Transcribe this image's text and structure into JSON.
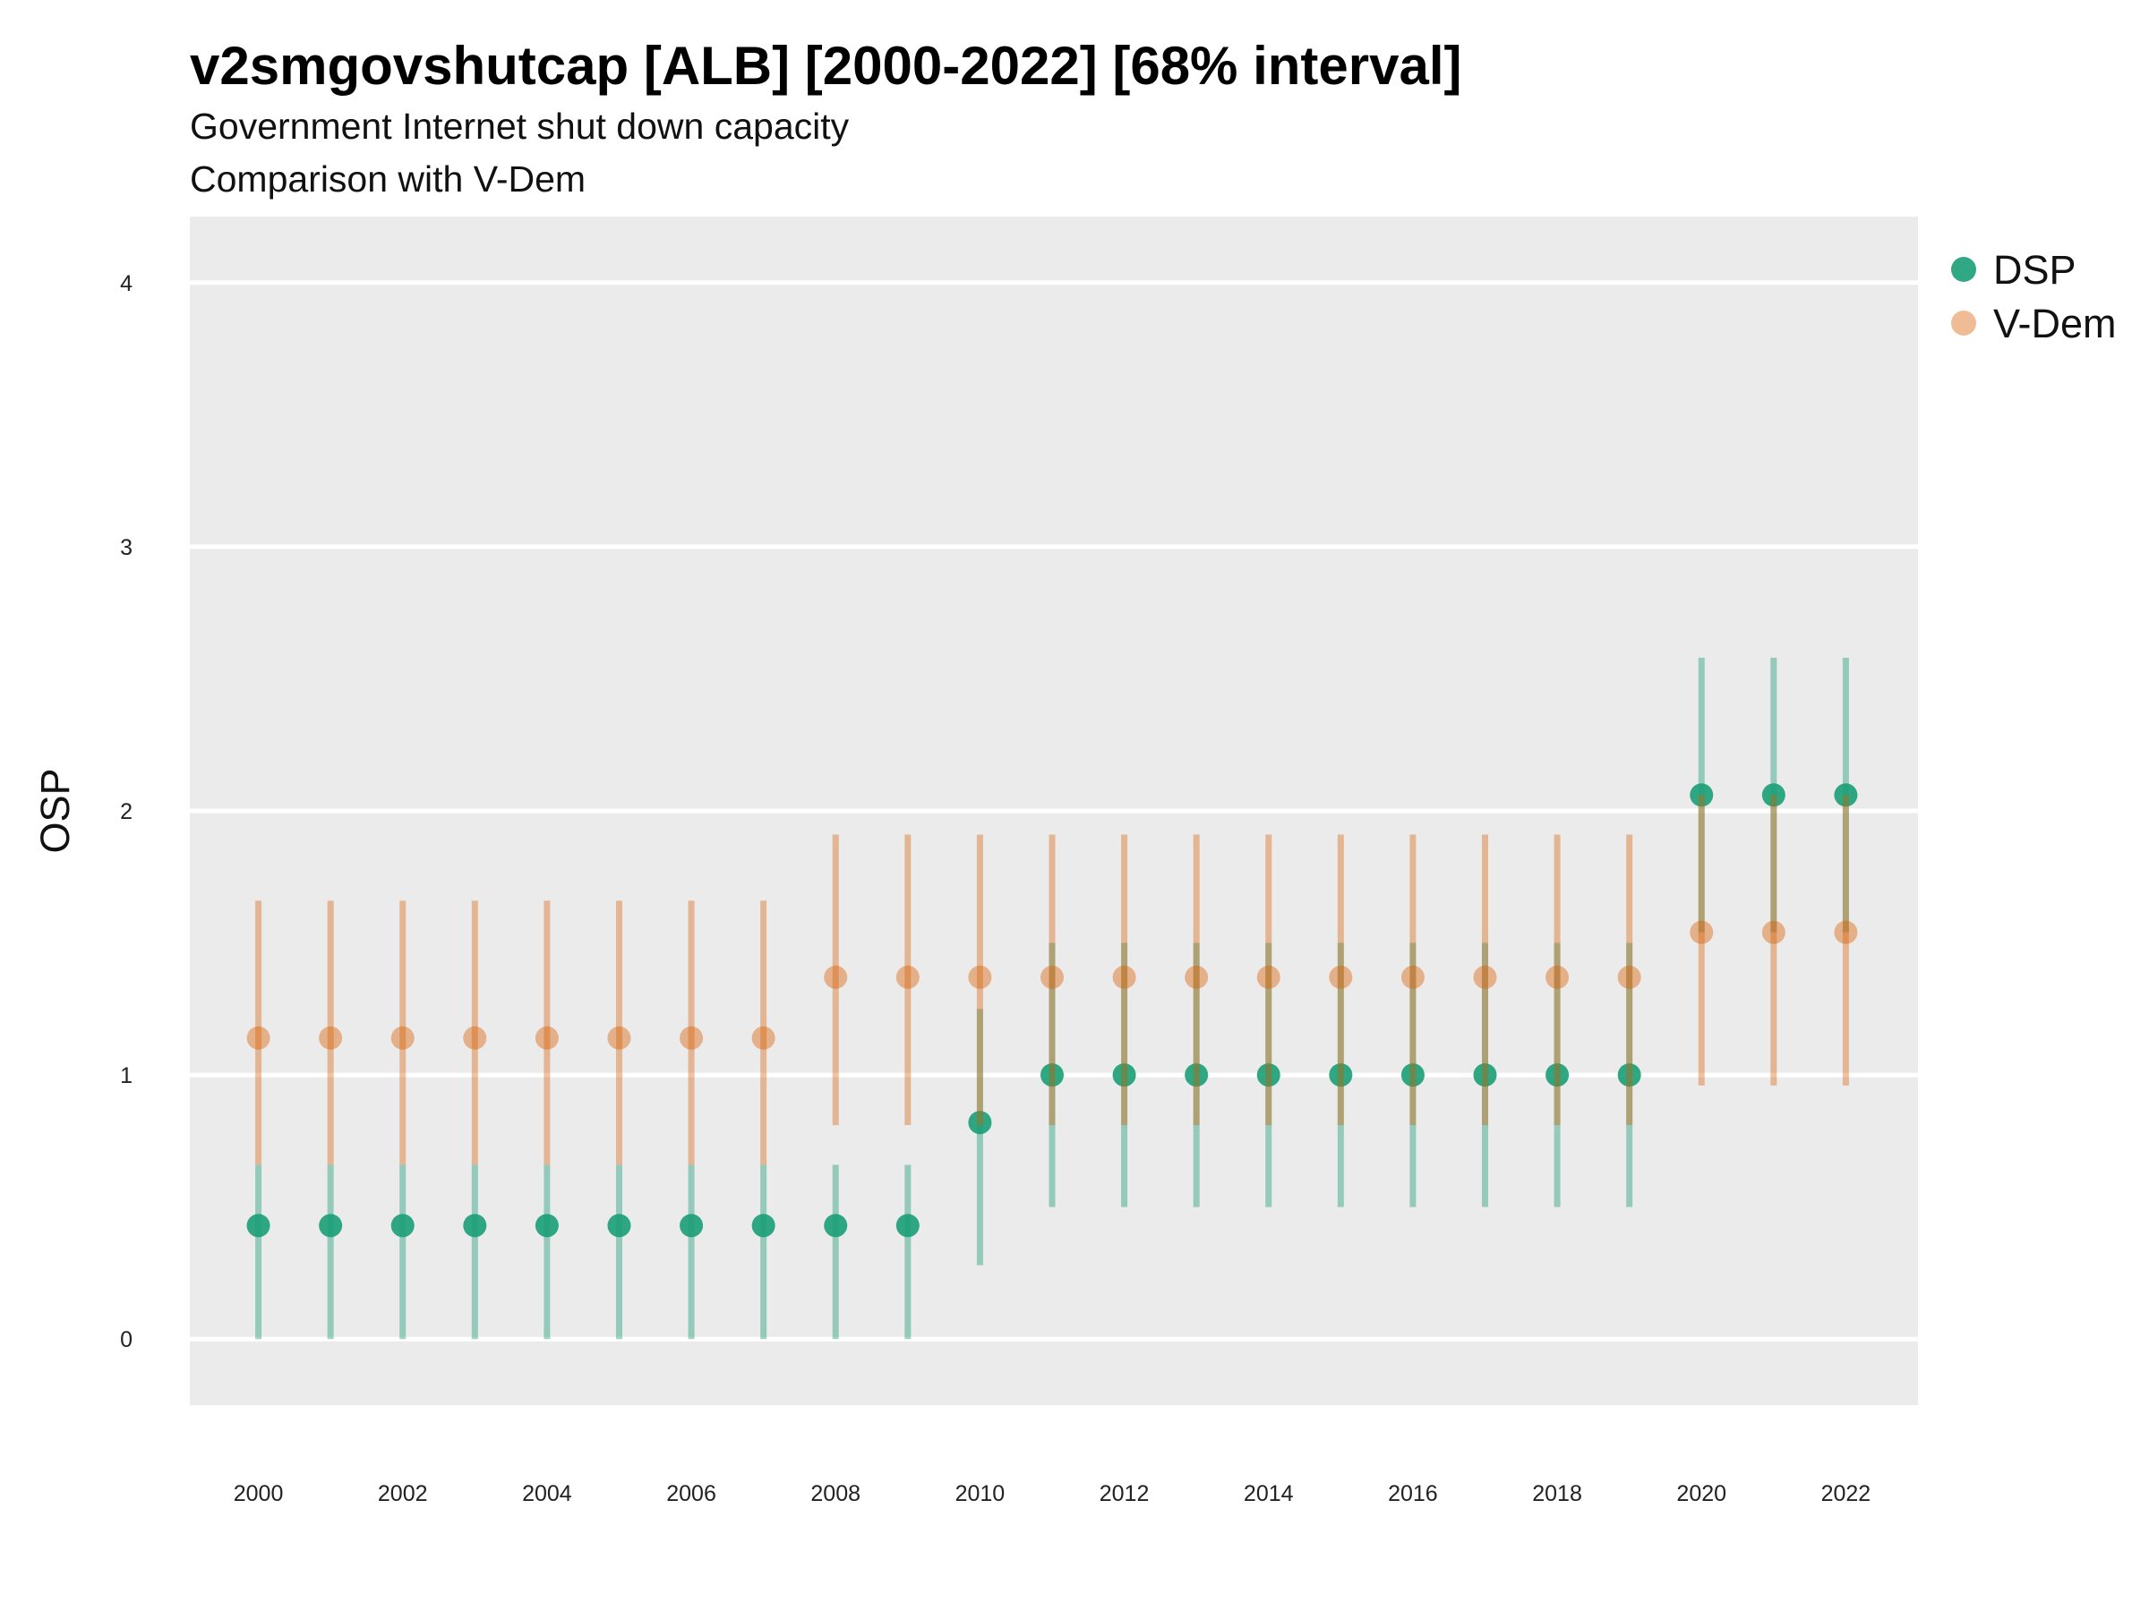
{
  "chart_data": {
    "type": "scatter",
    "title": "v2smgovshutcap [ALB] [2000-2022] [68% interval]",
    "subtitle_lines": [
      "Government Internet shut down capacity",
      "Comparison with V-Dem"
    ],
    "xlabel": "",
    "ylabel": "OSP",
    "x": [
      2000,
      2001,
      2002,
      2003,
      2004,
      2005,
      2006,
      2007,
      2008,
      2009,
      2010,
      2011,
      2012,
      2013,
      2014,
      2015,
      2016,
      2017,
      2018,
      2019,
      2020,
      2021,
      2022
    ],
    "x_ticks": [
      2000,
      2002,
      2004,
      2006,
      2008,
      2010,
      2012,
      2014,
      2016,
      2018,
      2020,
      2022
    ],
    "y_ticks": [
      0,
      1,
      2,
      3,
      4
    ],
    "xlim": [
      1999.05,
      2023.0
    ],
    "ylim": [
      -0.25,
      4.25
    ],
    "grid": true,
    "legend_position": "top-right",
    "series": [
      {
        "name": "DSP",
        "color": "#1b9e77",
        "values": [
          0.43,
          0.43,
          0.43,
          0.43,
          0.43,
          0.43,
          0.43,
          0.43,
          0.43,
          0.43,
          0.82,
          1.0,
          1.0,
          1.0,
          1.0,
          1.0,
          1.0,
          1.0,
          1.0,
          1.0,
          2.06,
          2.06,
          2.06
        ],
        "lower": [
          0.0,
          0.0,
          0.0,
          0.0,
          0.0,
          0.0,
          0.0,
          0.0,
          0.0,
          0.0,
          0.28,
          0.5,
          0.5,
          0.5,
          0.5,
          0.5,
          0.5,
          0.5,
          0.5,
          0.5,
          1.54,
          1.54,
          1.54
        ],
        "upper": [
          0.66,
          0.66,
          0.66,
          0.66,
          0.66,
          0.66,
          0.66,
          0.66,
          0.66,
          0.66,
          1.25,
          1.5,
          1.5,
          1.5,
          1.5,
          1.5,
          1.5,
          1.5,
          1.5,
          1.5,
          2.58,
          2.58,
          2.58
        ]
      },
      {
        "name": "V-Dem",
        "color": "#d95f02",
        "values": [
          1.14,
          1.14,
          1.14,
          1.14,
          1.14,
          1.14,
          1.14,
          1.14,
          1.37,
          1.37,
          1.37,
          1.37,
          1.37,
          1.37,
          1.37,
          1.37,
          1.37,
          1.37,
          1.37,
          1.37,
          1.54,
          1.54,
          1.54
        ],
        "lower": [
          0.66,
          0.66,
          0.66,
          0.66,
          0.66,
          0.66,
          0.66,
          0.66,
          0.81,
          0.81,
          0.81,
          0.81,
          0.81,
          0.81,
          0.81,
          0.81,
          0.81,
          0.81,
          0.81,
          0.81,
          0.96,
          0.96,
          0.96
        ],
        "upper": [
          1.66,
          1.66,
          1.66,
          1.66,
          1.66,
          1.66,
          1.66,
          1.66,
          1.91,
          1.91,
          1.91,
          1.91,
          1.91,
          1.91,
          1.91,
          1.91,
          1.91,
          1.91,
          1.91,
          1.91,
          2.06,
          2.06,
          2.06
        ]
      }
    ]
  }
}
